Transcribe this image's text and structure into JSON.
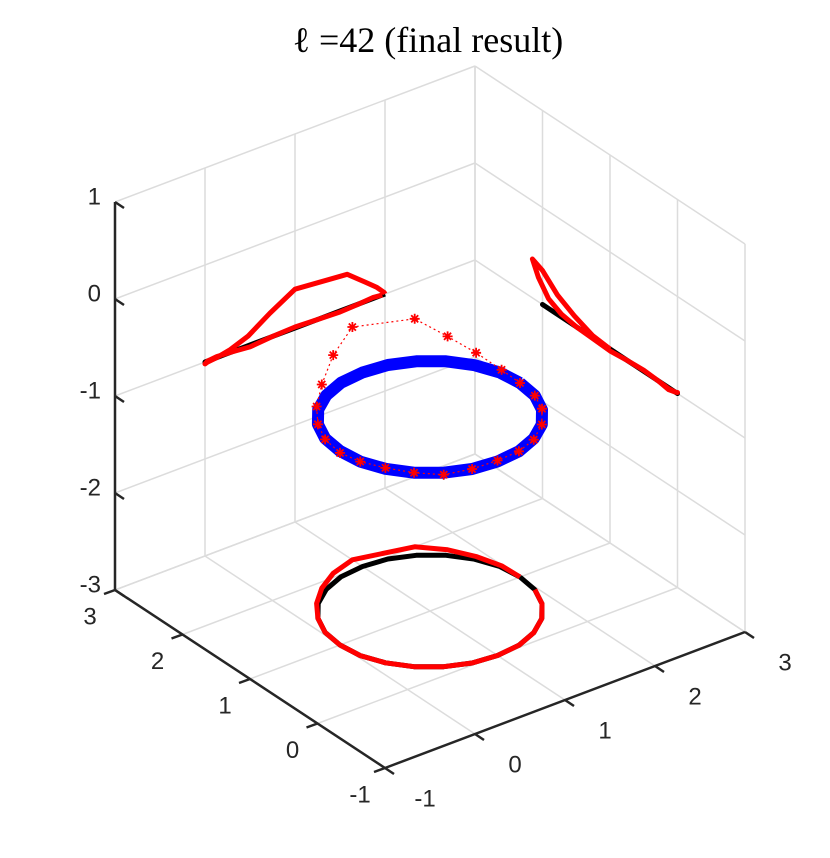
{
  "chart_data": {
    "type": "line3d",
    "title": "ℓ =42 (final result)",
    "xlim": [
      -1,
      3
    ],
    "ylim": [
      -1,
      3
    ],
    "zlim": [
      -3,
      1
    ],
    "xticks": [
      -1,
      0,
      1,
      2,
      3
    ],
    "yticks": [
      -1,
      0,
      1,
      2,
      3
    ],
    "zticks": [
      -3,
      -2,
      -1,
      0,
      1
    ],
    "grid": true,
    "projections": true,
    "series": [
      {
        "color": "#0000ff",
        "projection_color": "#000000",
        "closed": true,
        "marker": "none",
        "x": [
          2,
          1.97,
          1.87,
          1.71,
          1.5,
          1.26,
          1,
          0.74,
          0.5,
          0.29,
          0.13,
          0.03,
          0,
          0.03,
          0.13,
          0.29,
          0.5,
          0.74,
          1,
          1.26,
          1.5,
          1.71,
          1.87,
          1.97
        ],
        "y": [
          1,
          1.26,
          1.5,
          1.71,
          1.87,
          1.97,
          2,
          1.97,
          1.87,
          1.71,
          1.5,
          1.26,
          1,
          0.74,
          0.5,
          0.29,
          0.13,
          0.03,
          0,
          0.03,
          0.13,
          0.29,
          0.5,
          0.74
        ],
        "z": [
          -1,
          -1,
          -1,
          -1,
          -1,
          -1,
          -1,
          -1,
          -1,
          -1,
          -1,
          -1,
          -1,
          -1,
          -1,
          -1,
          -1,
          -1,
          -1,
          -1,
          -1,
          -1,
          -1,
          -1
        ]
      },
      {
        "color": "#ff0000",
        "projection_color": "#ff0000",
        "closed": false,
        "marker": "star",
        "x": [
          2,
          1.99,
          1.91,
          1.78,
          1.58,
          1,
          0.72,
          0.48,
          0.28,
          0.13,
          0.03,
          0,
          0.03,
          0.13,
          0.29,
          0.5,
          0.74,
          1,
          1.26,
          1.5,
          1.71,
          1.87,
          1.97
        ],
        "y": [
          1,
          1.26,
          1.53,
          1.78,
          2.0,
          2.15,
          2.06,
          1.91,
          1.72,
          1.5,
          1.26,
          1,
          0.74,
          0.5,
          0.29,
          0.13,
          0.03,
          0,
          0.03,
          0.13,
          0.29,
          0.5,
          0.74
        ],
        "z": [
          -1,
          -0.98,
          -0.9,
          -0.8,
          -0.65,
          -0.6,
          -0.75,
          -0.9,
          -0.97,
          -1.0,
          -1.01,
          -1.02,
          -1.0,
          -0.99,
          -1.0,
          -1.02,
          -1.0,
          -0.99,
          -1.0,
          -1.01,
          -1.0,
          -0.99,
          -1.0
        ]
      }
    ]
  }
}
